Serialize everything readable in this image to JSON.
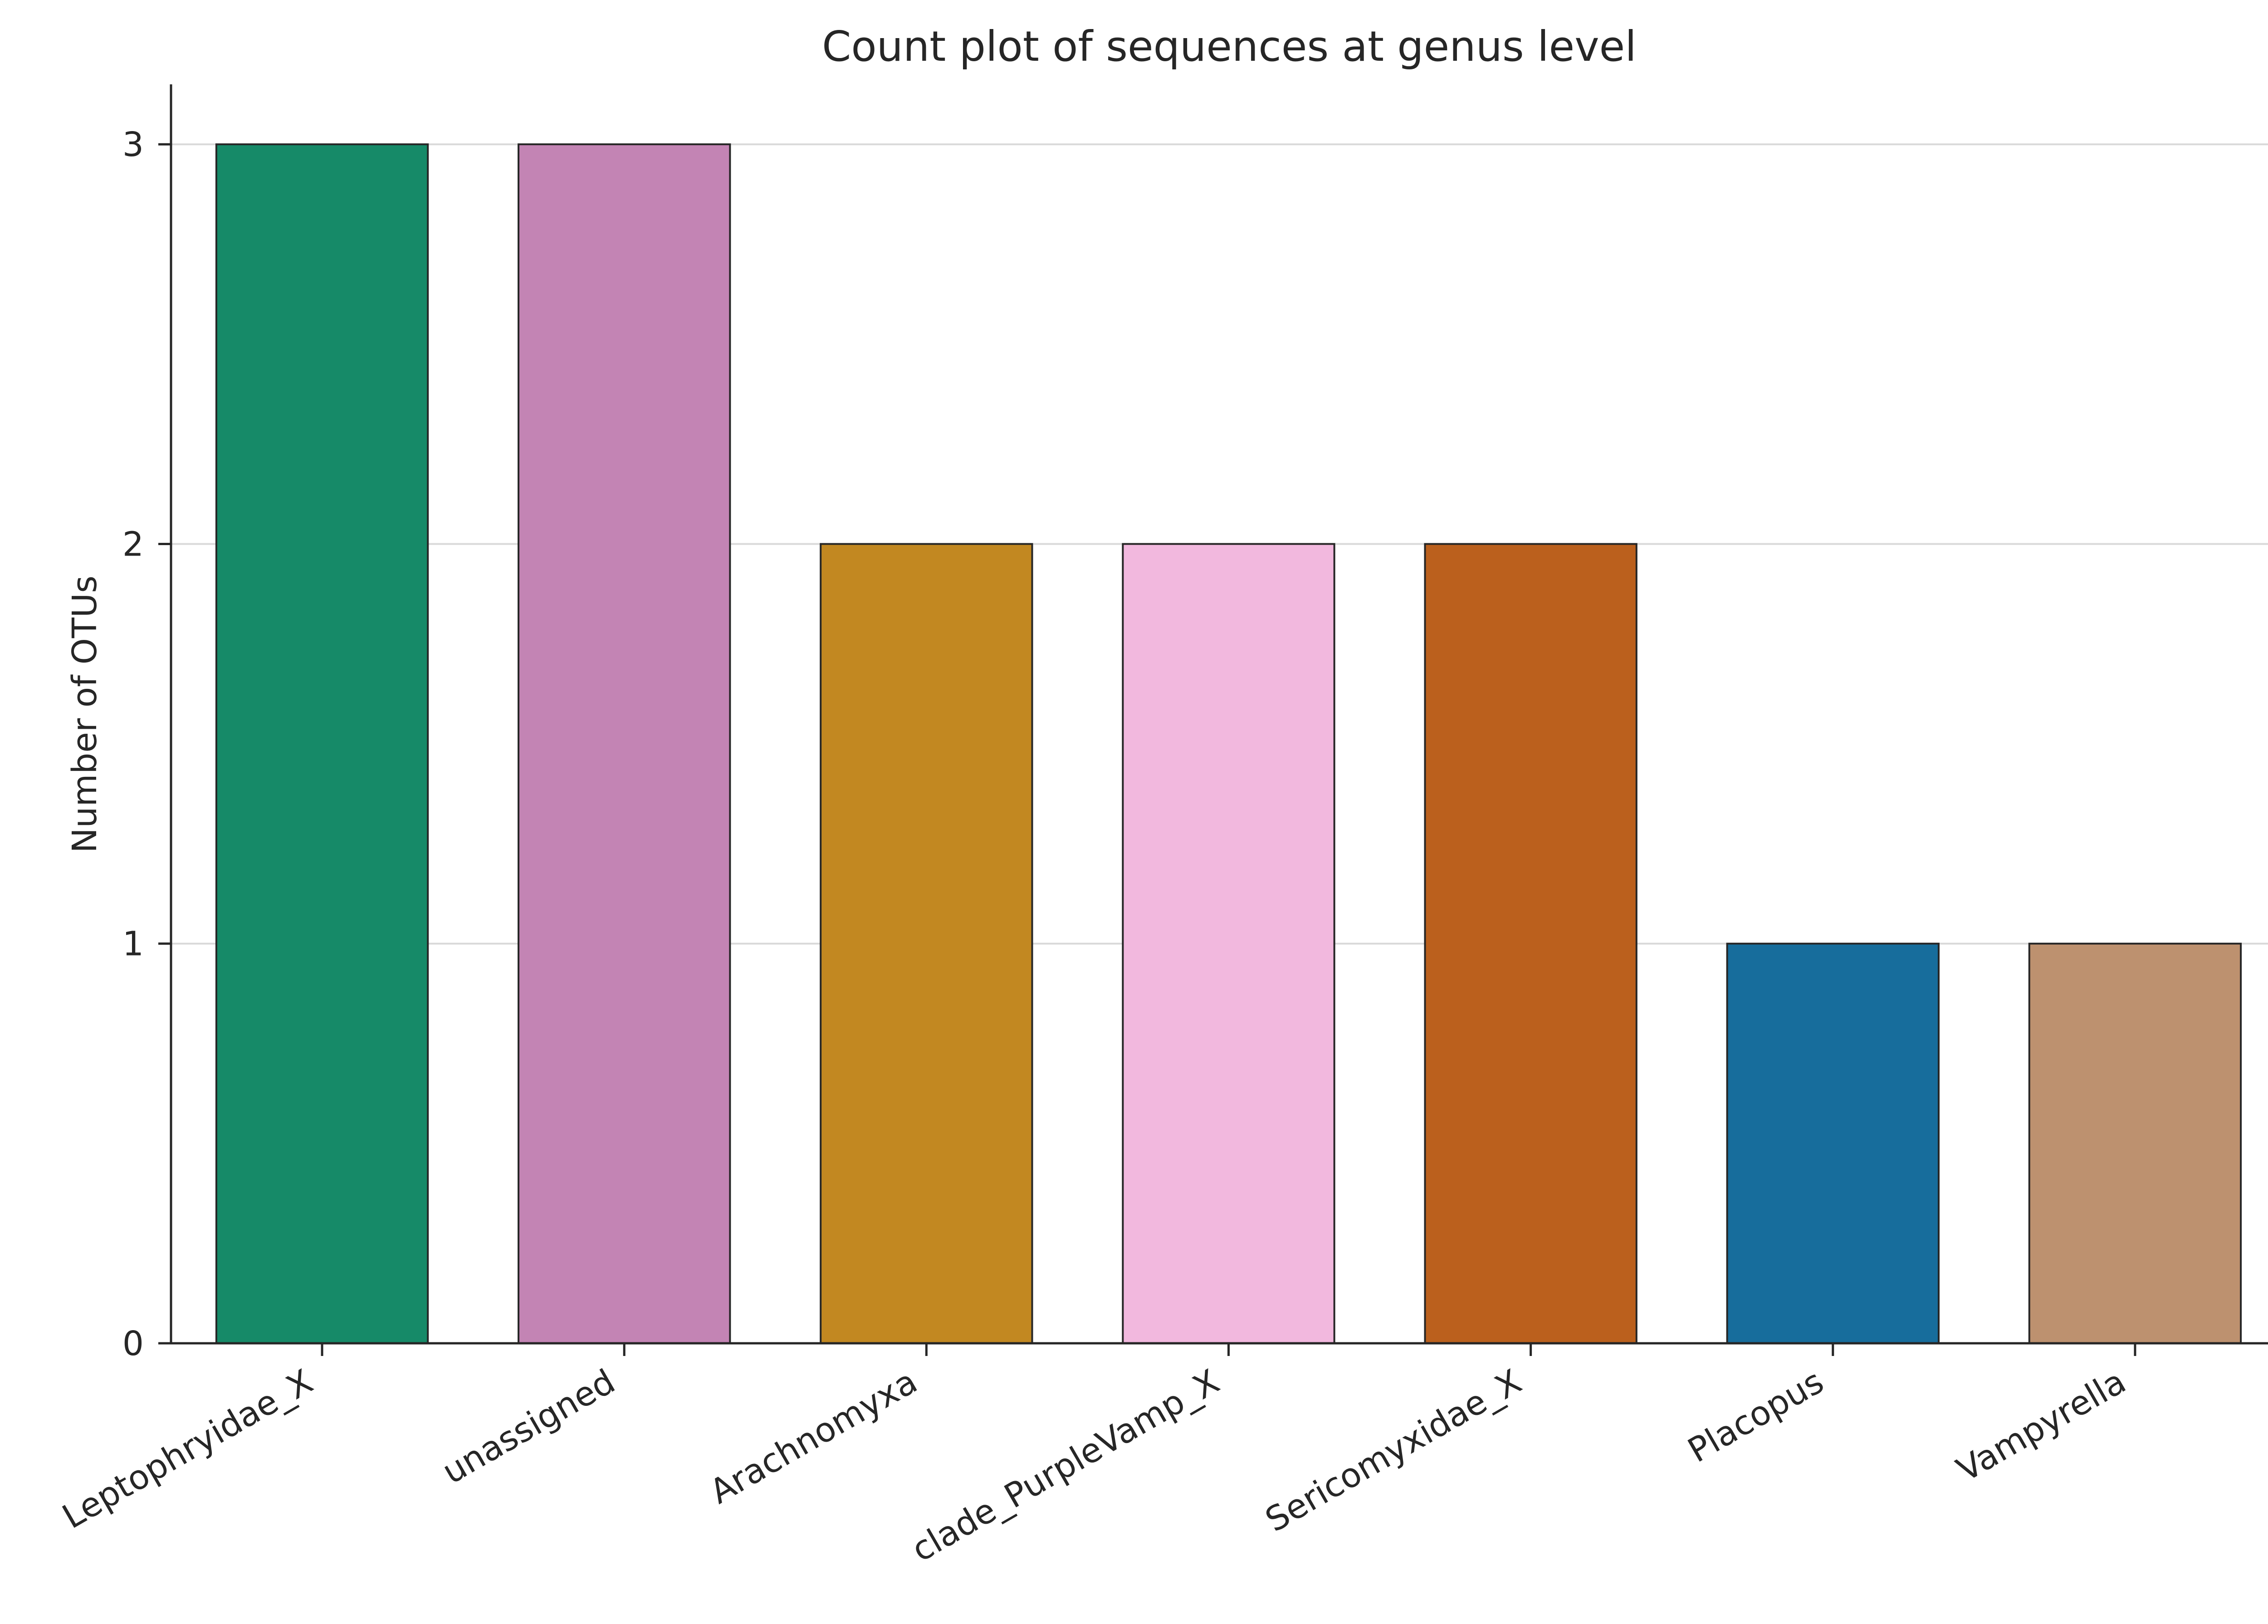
{
  "chart_data": {
    "type": "bar",
    "title": "Count plot of sequences at genus level",
    "xlabel": "",
    "ylabel": "Number of OTUs",
    "categories": [
      "Leptophryidae_X",
      "unassigned",
      "Arachnomyxa",
      "clade_PurpleVamp_X",
      "Sericomyxidae_X",
      "Placopus",
      "Vampyrella"
    ],
    "values": [
      3,
      3,
      2,
      2,
      2,
      1,
      1
    ],
    "colors": [
      "#168a68",
      "#c384b4",
      "#c28821",
      "#f2b8de",
      "#bb601d",
      "#176d9c",
      "#bd916f"
    ],
    "ylim": [
      0,
      3.15
    ],
    "yticks": [
      0,
      1,
      2,
      3
    ],
    "grid": "y",
    "legend": "none"
  }
}
